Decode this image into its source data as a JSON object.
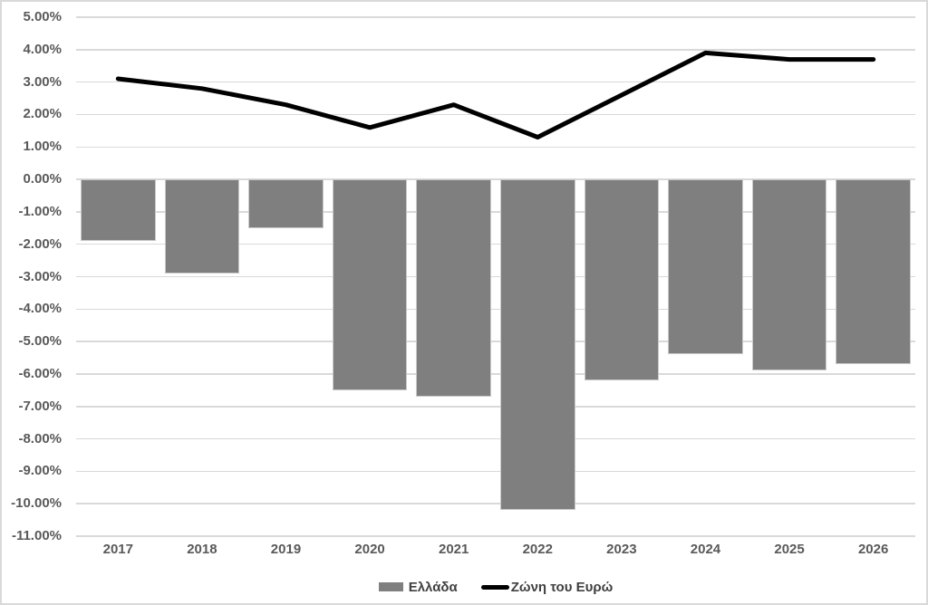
{
  "chart_data": {
    "type": "combo-bar-line",
    "categories": [
      "2017",
      "2018",
      "2019",
      "2020",
      "2021",
      "2022",
      "2023",
      "2024",
      "2025",
      "2026"
    ],
    "series": [
      {
        "name": "Ελλάδα",
        "type": "bar",
        "color": "#7f7f7f",
        "values": [
          -1.9,
          -2.9,
          -1.5,
          -6.5,
          -6.7,
          -10.2,
          -6.2,
          -5.4,
          -5.9,
          -5.7
        ]
      },
      {
        "name": "Ζώνη του Ευρώ",
        "type": "line",
        "color": "#000000",
        "values": [
          3.1,
          2.8,
          2.3,
          1.6,
          2.3,
          1.3,
          2.6,
          3.9,
          3.7,
          3.7
        ]
      }
    ],
    "ylim": [
      -11,
      5
    ],
    "ytick_step": 1,
    "ytick_labels": [
      "5.00%",
      "4.00%",
      "3.00%",
      "2.00%",
      "1.00%",
      "0.00%",
      "-1.00%",
      "-2.00%",
      "-3.00%",
      "-4.00%",
      "-5.00%",
      "-6.00%",
      "-7.00%",
      "-8.00%",
      "-9.00%",
      "-10.00%",
      "-11.00%"
    ],
    "value_unit": "%",
    "title": "",
    "xlabel": "",
    "ylabel": "",
    "grid": true,
    "legend_position": "bottom"
  },
  "colors": {
    "bar_fill": "#7f7f7f",
    "line_stroke": "#000000",
    "gridline": "#d9d9d9",
    "axis_text": "#595959",
    "legend_text": "#404040",
    "background": "#ffffff",
    "chart_border": "#d9d9d9"
  },
  "legend": {
    "items": [
      {
        "label": "Ελλάδα",
        "swatch": "bar-swatch"
      },
      {
        "label": "Ζώνη του Ευρώ",
        "swatch": "line-swatch"
      }
    ]
  }
}
